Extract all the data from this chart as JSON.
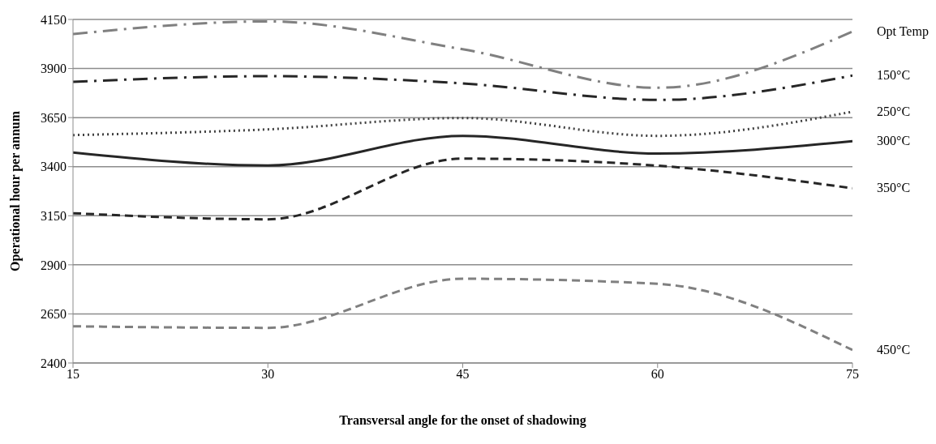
{
  "chart_data": {
    "type": "line",
    "xlabel": "Transversal angle for the onset of shadowing",
    "ylabel": "Operational hour per annum",
    "x": [
      15,
      30,
      45,
      60,
      75
    ],
    "xlim": [
      15,
      75
    ],
    "xticks": [
      15,
      30,
      45,
      60,
      75
    ],
    "ylim": [
      2400,
      4150
    ],
    "yticks": [
      2400,
      2650,
      2900,
      3150,
      3400,
      3650,
      3900,
      4150
    ],
    "grid": "y",
    "legend": false,
    "marker": "none",
    "series": [
      {
        "name": "Opt Temp",
        "color": "#808080",
        "line_style": "dashdot",
        "values": [
          4076,
          4140,
          3998,
          3802,
          4088
        ]
      },
      {
        "name": "150°C",
        "color": "#262626",
        "line_style": "dashdot",
        "values": [
          3832,
          3861,
          3824,
          3740,
          3864
        ]
      },
      {
        "name": "250°C",
        "color": "#404040",
        "line_style": "dotted",
        "values": [
          3561,
          3590,
          3648,
          3557,
          3680
        ]
      },
      {
        "name": "300°C",
        "color": "#262626",
        "line_style": "solid",
        "values": [
          3472,
          3406,
          3557,
          3467,
          3530
        ]
      },
      {
        "name": "350°C",
        "color": "#262626",
        "line_style": "dashed",
        "values": [
          3163,
          3132,
          3441,
          3405,
          3290
        ]
      },
      {
        "name": "450°C",
        "color": "#808080",
        "line_style": "dashed",
        "values": [
          2587,
          2579,
          2829,
          2803,
          2466
        ]
      }
    ]
  }
}
